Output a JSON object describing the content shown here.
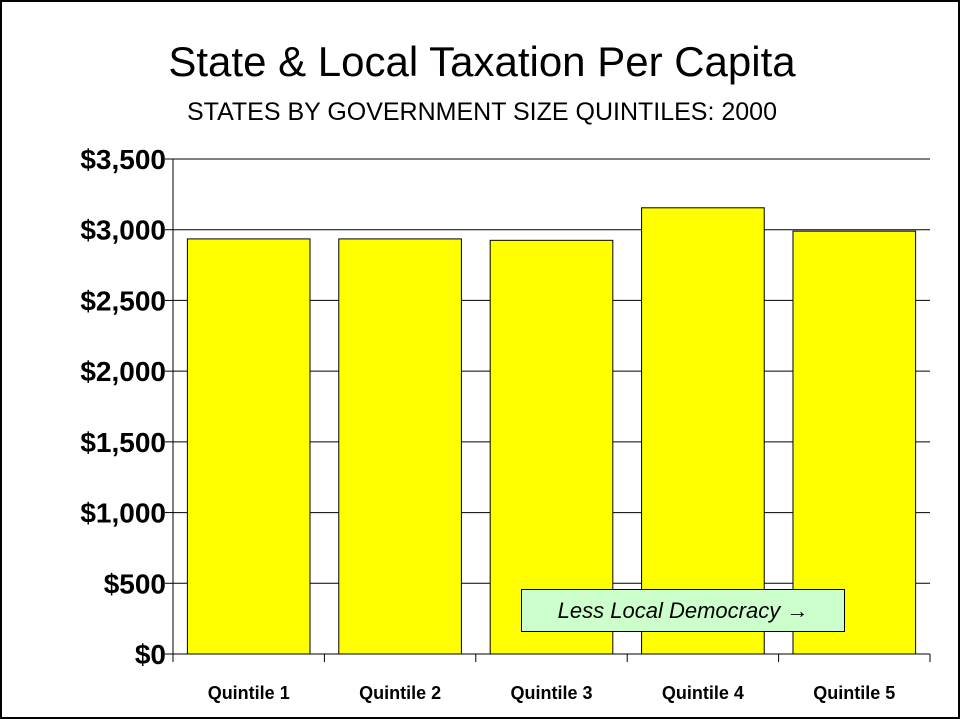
{
  "chart_data": {
    "type": "bar",
    "title": "State & Local Taxation Per Capita",
    "subtitle": "STATES BY GOVERNMENT SIZE QUINTILES: 2000",
    "xlabel": "",
    "ylabel": "",
    "categories": [
      "Quintile 1",
      "Quintile 2",
      "Quintile 3",
      "Quintile 4",
      "Quintile 5"
    ],
    "values": [
      2935,
      2935,
      2925,
      3155,
      2990
    ],
    "ylim": [
      0,
      3500
    ],
    "yticks": [
      0,
      500,
      1000,
      1500,
      2000,
      2500,
      3000,
      3500
    ],
    "ytick_labels": [
      "$0",
      "$500",
      "$1,000",
      "$1,500",
      "$2,000",
      "$2,500",
      "$3,000",
      "$3,500"
    ],
    "grid": true,
    "legend": "none",
    "bar_color": "#ffff00",
    "annotation": {
      "text": "Less Local Democracy →",
      "background": "#ccffcc"
    }
  }
}
